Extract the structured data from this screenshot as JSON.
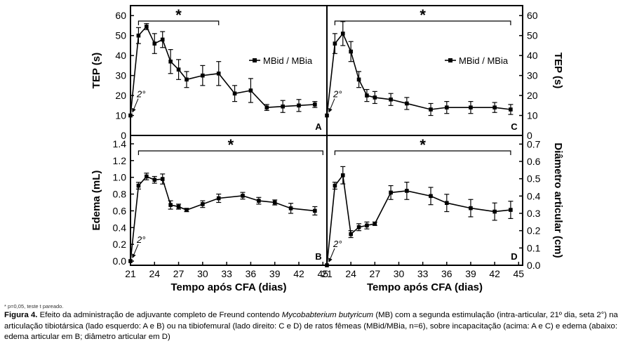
{
  "chart_data": [
    {
      "panel": "A",
      "type": "line",
      "ylabel": "TEP (s)",
      "yaxis_side": "left",
      "ylim": [
        0,
        65
      ],
      "yticks": [
        0,
        10,
        20,
        30,
        40,
        50,
        60
      ],
      "xlim": [
        21,
        45.5
      ],
      "xticks": [],
      "legend": "MBid / MBia",
      "arrow_label": "2°",
      "significance": "*",
      "bracket": [
        22,
        32
      ],
      "series": [
        {
          "x": [
            21,
            22,
            23,
            24,
            25,
            26,
            27,
            28,
            30,
            32,
            34,
            36,
            38,
            40,
            42,
            44
          ],
          "y": [
            10,
            50,
            54.5,
            46,
            48,
            37,
            33,
            28,
            30,
            31,
            21,
            22.5,
            14,
            14.5,
            15,
            15.5
          ],
          "err": [
            0,
            4,
            1.5,
            5,
            4,
            6,
            5,
            4,
            5,
            6,
            4,
            6,
            1.5,
            3,
            3,
            1.5
          ]
        }
      ]
    },
    {
      "panel": "C",
      "type": "line",
      "ylabel": "TEP (s)",
      "yaxis_side": "right",
      "ylim": [
        0,
        65
      ],
      "yticks": [
        0,
        10,
        20,
        30,
        40,
        50,
        60
      ],
      "xlim": [
        21,
        45.5
      ],
      "xticks": [],
      "legend": "MBid / MBia",
      "arrow_label": "2°",
      "significance": "*",
      "bracket": [
        22,
        44
      ],
      "series": [
        {
          "x": [
            21,
            22,
            23,
            24,
            25,
            26,
            27,
            29,
            31,
            34,
            36,
            39,
            42,
            44
          ],
          "y": [
            10,
            46,
            51,
            42,
            28,
            20,
            19,
            18,
            16,
            13,
            14,
            14,
            14,
            13
          ],
          "err": [
            0,
            5,
            6,
            5,
            4,
            3,
            3,
            3,
            3,
            3,
            3,
            3,
            2.5,
            2.5
          ]
        }
      ]
    },
    {
      "panel": "B",
      "type": "line",
      "ylabel": "Edema (mL)",
      "yaxis_side": "left",
      "ylim": [
        -0.05,
        1.5
      ],
      "yticks": [
        0.0,
        0.2,
        0.4,
        0.6,
        0.8,
        1.0,
        1.2,
        1.4
      ],
      "ytick_labels": [
        "0.0",
        "0.2",
        "0.4",
        "0.6",
        "0.8",
        "1.0",
        "1.2",
        "1.4"
      ],
      "xlim": [
        21,
        45.5
      ],
      "xticks": [
        21,
        24,
        27,
        30,
        33,
        36,
        39,
        42,
        45
      ],
      "xlabel": "Tempo após CFA (dias)",
      "arrow_label": "2°",
      "significance": "*",
      "bracket": [
        22,
        45
      ],
      "series": [
        {
          "x": [
            21,
            22,
            23,
            24,
            25,
            26,
            27,
            28,
            30,
            32,
            35,
            37,
            39,
            41,
            44
          ],
          "y": [
            0.0,
            0.9,
            1.01,
            0.97,
            0.98,
            0.67,
            0.65,
            0.61,
            0.68,
            0.75,
            0.78,
            0.72,
            0.7,
            0.63,
            0.6
          ],
          "err": [
            0,
            0.04,
            0.04,
            0.04,
            0.06,
            0.05,
            0.03,
            0.02,
            0.04,
            0.05,
            0.04,
            0.04,
            0.03,
            0.06,
            0.05
          ]
        }
      ]
    },
    {
      "panel": "D",
      "type": "line",
      "ylabel": "Diâmetro articular (cm)",
      "yaxis_side": "right",
      "ylim": [
        0,
        0.75
      ],
      "yticks": [
        0.0,
        0.1,
        0.2,
        0.3,
        0.4,
        0.5,
        0.6,
        0.7
      ],
      "ytick_labels": [
        "0.0",
        "0.1",
        "0.2",
        "0.3",
        "0.4",
        "0.5",
        "0.6",
        "0.7"
      ],
      "xlim": [
        21,
        45.5
      ],
      "xticks": [
        21,
        24,
        27,
        30,
        33,
        36,
        39,
        42,
        45
      ],
      "xlabel": "Tempo após CFA (dias)",
      "arrow_label": "2°",
      "significance": "*",
      "bracket": [
        22,
        44
      ],
      "series": [
        {
          "x": [
            21,
            22,
            23,
            24,
            25,
            26,
            27,
            29,
            31,
            34,
            36,
            39,
            42,
            44
          ],
          "y": [
            0.0,
            0.46,
            0.52,
            0.18,
            0.22,
            0.23,
            0.24,
            0.42,
            0.43,
            0.4,
            0.36,
            0.33,
            0.31,
            0.32
          ],
          "err": [
            0,
            0.02,
            0.05,
            0.02,
            0.02,
            0.02,
            0.01,
            0.04,
            0.05,
            0.05,
            0.05,
            0.05,
            0.05,
            0.05
          ]
        }
      ]
    }
  ],
  "footnote": "* p=0,05, teste t pareado.",
  "caption": {
    "label": "Figura 4.",
    "text_before_italic": " Efeito da administração de adjuvante completo de Freund contendo ",
    "italic": "Mycobabterium butyricum",
    "text_after_italic": " (MB) com a segunda estimulação (intra-articular, 21º dia, seta 2°) na articulação tibiotársica (lado esquerdo: A e B) ou na tibiofemural (lado direito: C e D) de ratos fêmeas (MBid/MBia, n=6), sobre incapacitação (acima: A e C) e edema (abaixo: edema articular em B; diâmetro articular em D)"
  }
}
